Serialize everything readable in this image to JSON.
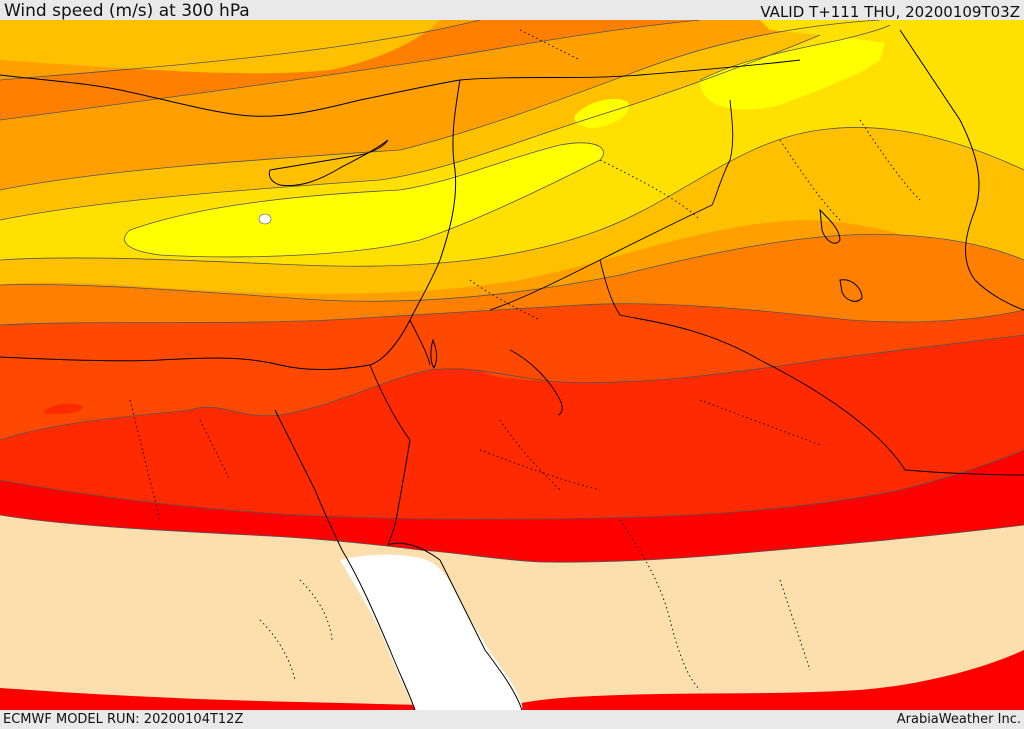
{
  "header": {
    "title": "Wind speed (m/s) at 300 hPa",
    "valid": "VALID T+111 THU, 20200109T03Z"
  },
  "footer": {
    "model_run": "ECMWF MODEL RUN: 20200104T12Z",
    "credit": "ArabiaWeather Inc."
  },
  "map": {
    "variable": "wind-speed",
    "colors": {
      "calm": "#ffffff",
      "low": "#fddfae",
      "yellow_bright": "#ffff00",
      "yellow": "#ffe000",
      "yellow_orange": "#ffc000",
      "orange_light": "#ffa000",
      "orange": "#ff8000",
      "orange_red": "#ff4800",
      "red_orange": "#ff2a00",
      "red": "#ff0000",
      "coastline": "#000000",
      "border": "#000000",
      "contour": "#555555"
    }
  }
}
